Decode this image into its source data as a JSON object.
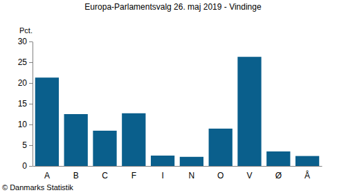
{
  "chart_data": {
    "type": "bar",
    "title": "Europa-Parlamentsvalg 26. maj 2019 - Vindinge",
    "y_label": "Pct.",
    "annotations": [
      "© Danmarks Statistik"
    ],
    "categories": [
      "A",
      "B",
      "C",
      "F",
      "I",
      "N",
      "O",
      "V",
      "Ø",
      "Å"
    ],
    "values": [
      21.3,
      12.5,
      8.5,
      12.7,
      2.5,
      2.2,
      9.0,
      26.3,
      3.5,
      2.4
    ],
    "color": "#0a5f8c",
    "ylim": [
      0,
      30
    ],
    "yticks": [
      0,
      5,
      10,
      15,
      20,
      25,
      30
    ],
    "grid": false
  }
}
